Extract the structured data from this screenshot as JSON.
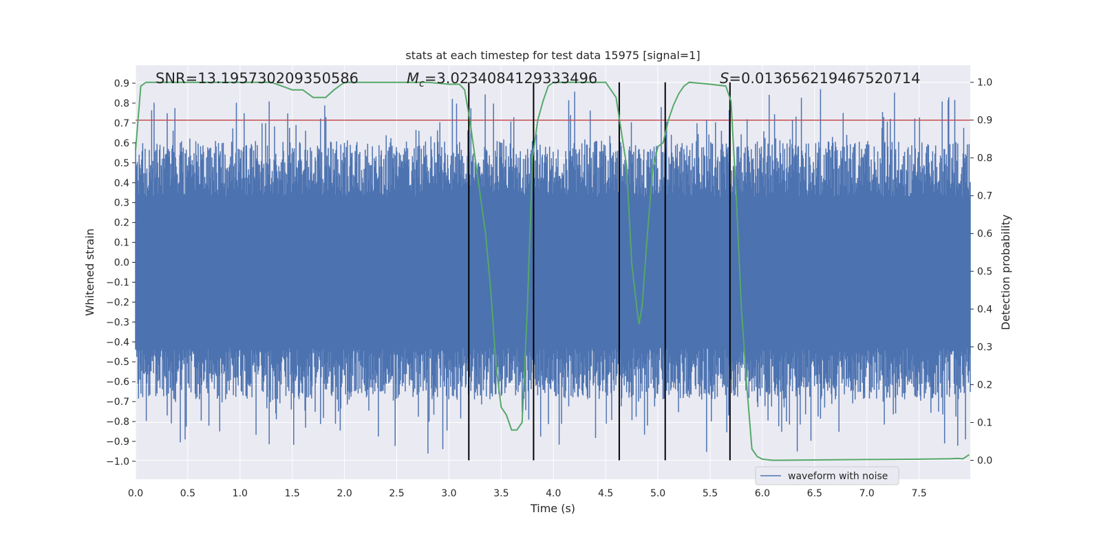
{
  "chart_data": {
    "type": "line",
    "title": "stats at each timestep for test data 15975 [signal=1]",
    "xlabel": "Time (s)",
    "ylabel": "Whitened strain",
    "y2label": "Detection probability",
    "xlim": [
      0.0,
      7.99
    ],
    "ylim": [
      -1.09,
      0.99
    ],
    "y2lim": [
      -0.05,
      1.045
    ],
    "xticks": [
      0.0,
      0.5,
      1.0,
      1.5,
      2.0,
      2.5,
      3.0,
      3.5,
      4.0,
      4.5,
      5.0,
      5.5,
      6.0,
      6.5,
      7.0,
      7.5
    ],
    "xtick_labels": [
      "0.0",
      "0.5",
      "1.0",
      "1.5",
      "2.0",
      "2.5",
      "3.0",
      "3.5",
      "4.0",
      "4.5",
      "5.0",
      "5.5",
      "6.0",
      "6.5",
      "7.0",
      "7.5"
    ],
    "yticks": [
      0.9,
      0.8,
      0.7,
      0.6,
      0.5,
      0.4,
      0.3,
      0.2,
      0.1,
      0.0,
      -0.1,
      -0.2,
      -0.3,
      -0.4,
      -0.5,
      -0.6,
      -0.7,
      -0.8,
      -0.9,
      -1.0
    ],
    "ytick_labels": [
      "0.9",
      "0.8",
      "0.7",
      "0.6",
      "0.5",
      "0.4",
      "0.3",
      "0.2",
      "0.1",
      "0.0",
      "−0.1",
      "−0.2",
      "−0.3",
      "−0.4",
      "−0.5",
      "−0.6",
      "−0.7",
      "−0.8",
      "−0.9",
      "−1.0"
    ],
    "y2ticks": [
      1.0,
      0.9,
      0.8,
      0.7,
      0.6,
      0.5,
      0.4,
      0.3,
      0.2,
      0.1,
      0.0
    ],
    "y2tick_labels": [
      "1.0",
      "0.9",
      "0.8",
      "0.7",
      "0.6",
      "0.5",
      "0.4",
      "0.3",
      "0.2",
      "0.1",
      "0.0"
    ],
    "annotations": {
      "snr": "SNR=13.195730209350586",
      "mc_symbol": "M",
      "mc_sub": "c",
      "mc_value": "=3.0234084129333496",
      "s_symbol": "S",
      "s_value": "=0.013656219467520714"
    },
    "legend": {
      "label": "waveform with noise",
      "location": "lower-right"
    },
    "colors": {
      "waveform": "#4c72b0",
      "probability": "#55a868",
      "threshold": "#c44e52",
      "vlines": "#000000",
      "axes_bg": "#eaeaf2",
      "grid": "#ffffff"
    },
    "waveform": {
      "name": "waveform with noise",
      "envelope_core": 0.33,
      "max_peak": 0.9,
      "min_peak": -1.0
    },
    "threshold_probability": 0.9,
    "vertical_lines_s": [
      3.19,
      3.81,
      4.63,
      5.07,
      5.69
    ],
    "detection_probability": {
      "t": [
        0.0,
        0.05,
        0.1,
        0.2,
        1.3,
        1.4,
        1.5,
        1.6,
        1.65,
        1.7,
        1.75,
        1.82,
        1.9,
        1.95,
        2.0,
        2.8,
        3.0,
        3.1,
        3.15,
        3.2,
        3.3,
        3.35,
        3.4,
        3.45,
        3.5,
        3.55,
        3.6,
        3.65,
        3.7,
        3.75,
        3.8,
        3.85,
        3.9,
        3.95,
        4.0,
        4.1,
        4.5,
        4.6,
        4.7,
        4.75,
        4.8,
        4.82,
        4.85,
        4.9,
        4.95,
        5.0,
        5.05,
        5.1,
        5.15,
        5.2,
        5.25,
        5.3,
        5.5,
        5.65,
        5.7,
        5.75,
        5.8,
        5.85,
        5.9,
        5.95,
        6.0,
        6.1,
        6.5,
        7.0,
        7.5,
        7.8,
        7.87,
        7.92,
        7.98
      ],
      "p": [
        0.82,
        0.99,
        1.0,
        1.0,
        1.0,
        0.99,
        0.98,
        0.98,
        0.97,
        0.96,
        0.96,
        0.96,
        0.98,
        0.99,
        1.0,
        1.0,
        0.995,
        0.995,
        0.98,
        0.9,
        0.7,
        0.6,
        0.45,
        0.25,
        0.14,
        0.12,
        0.08,
        0.08,
        0.1,
        0.4,
        0.8,
        0.9,
        0.95,
        0.99,
        1.0,
        1.0,
        1.0,
        0.96,
        0.78,
        0.52,
        0.4,
        0.36,
        0.41,
        0.6,
        0.77,
        0.83,
        0.84,
        0.9,
        0.94,
        0.97,
        0.99,
        1.0,
        0.995,
        0.99,
        0.95,
        0.7,
        0.4,
        0.2,
        0.03,
        0.01,
        0.003,
        0.0,
        0.001,
        0.002,
        0.003,
        0.004,
        0.005,
        0.004,
        0.015
      ]
    }
  }
}
